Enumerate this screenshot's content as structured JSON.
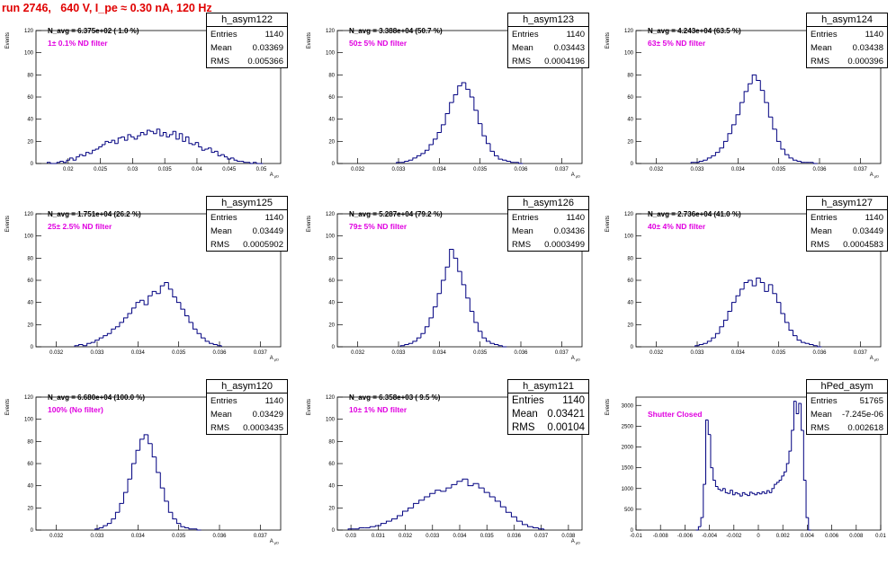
{
  "title": "run 2746,   640 V, I_pe ≈ 0.30 nA, 120 Hz",
  "stat_labels": {
    "entries": "Entries",
    "mean": "Mean",
    "rms": "RMS"
  },
  "colors": {
    "title": "#e00000",
    "annotation": "#e000e0",
    "histogram": "#000080"
  },
  "chart_data": [
    {
      "type": "bar",
      "name": "h_asym122",
      "navg": "N_avg = 6.375e+02 ( 1.0 %)",
      "filter": "1± 0.1% ND filter",
      "entries": "1140",
      "mean": "0.03369",
      "rms": "0.005366",
      "big_stats": false,
      "ylabel": "Events",
      "xlabel": "A_{μD}",
      "xlim": [
        0.015,
        0.053
      ],
      "ylim": [
        0,
        120
      ],
      "yticks": [
        0,
        20,
        40,
        60,
        80,
        100,
        120
      ],
      "xticks": [
        0.02,
        0.025,
        0.03,
        0.035,
        0.04,
        0.045,
        0.05
      ],
      "xtick_labels": [
        "0.02",
        "0.025",
        "0.03",
        "0.035",
        "0.04",
        "0.045",
        "0.05"
      ],
      "x": [
        0.017,
        0.0175,
        0.018,
        0.0185,
        0.019,
        0.0195,
        0.02,
        0.0205,
        0.021,
        0.0215,
        0.022,
        0.0225,
        0.023,
        0.0235,
        0.024,
        0.0245,
        0.025,
        0.0255,
        0.026,
        0.0265,
        0.027,
        0.0275,
        0.028,
        0.0285,
        0.029,
        0.0295,
        0.03,
        0.0305,
        0.031,
        0.0315,
        0.032,
        0.0325,
        0.033,
        0.0335,
        0.034,
        0.0345,
        0.035,
        0.0355,
        0.036,
        0.0365,
        0.037,
        0.0375,
        0.038,
        0.0385,
        0.039,
        0.0395,
        0.04,
        0.0405,
        0.041,
        0.0415,
        0.042,
        0.0425,
        0.043,
        0.0435,
        0.044,
        0.0445,
        0.045,
        0.0455,
        0.046,
        0.0465,
        0.047,
        0.0475,
        0.048,
        0.0485,
        0.049,
        0.0495,
        0.05
      ],
      "values": [
        1,
        0,
        0,
        1,
        2,
        1,
        3,
        5,
        3,
        6,
        8,
        7,
        10,
        9,
        12,
        13,
        15,
        17,
        20,
        19,
        21,
        18,
        23,
        24,
        21,
        26,
        24,
        22,
        25,
        28,
        26,
        30,
        29,
        27,
        31,
        25,
        28,
        24,
        26,
        29,
        22,
        27,
        20,
        24,
        18,
        17,
        19,
        15,
        12,
        13,
        14,
        10,
        11,
        7,
        8,
        6,
        4,
        5,
        3,
        2,
        2,
        1,
        1,
        0,
        1,
        0,
        0
      ]
    },
    {
      "type": "bar",
      "name": "h_asym123",
      "navg": "N_avg = 3.388e+04 (50.7 %)",
      "filter": "50± 5% ND filter",
      "entries": "1140",
      "mean": "0.03443",
      "rms": "0.0004196",
      "big_stats": false,
      "ylabel": "Events",
      "xlabel": "A_{μD}",
      "xlim": [
        0.0315,
        0.0375
      ],
      "ylim": [
        0,
        120
      ],
      "yticks": [
        0,
        20,
        40,
        60,
        80,
        100,
        120
      ],
      "xticks": [
        0.032,
        0.033,
        0.034,
        0.035,
        0.036,
        0.037
      ],
      "xtick_labels": [
        "0.032",
        "0.033",
        "0.034",
        "0.035",
        "0.036",
        "0.037"
      ],
      "x": [
        0.033,
        0.0331,
        0.0332,
        0.0333,
        0.0334,
        0.0335,
        0.0336,
        0.0337,
        0.0338,
        0.0339,
        0.034,
        0.0341,
        0.0342,
        0.0343,
        0.0344,
        0.0345,
        0.0346,
        0.0347,
        0.0348,
        0.0349,
        0.035,
        0.0351,
        0.0352,
        0.0353,
        0.0354,
        0.0355,
        0.0356,
        0.0357,
        0.0358,
        0.0359,
        0.036
      ],
      "values": [
        1,
        1,
        2,
        3,
        5,
        7,
        9,
        12,
        17,
        22,
        28,
        35,
        45,
        55,
        62,
        70,
        73,
        67,
        60,
        48,
        36,
        25,
        18,
        11,
        7,
        4,
        3,
        2,
        1,
        1,
        0
      ]
    },
    {
      "type": "bar",
      "name": "h_asym124",
      "navg": "N_avg = 4.243e+04 (63.5 %)",
      "filter": "63± 5% ND filter",
      "entries": "1140",
      "mean": "0.03438",
      "rms": "0.000396",
      "big_stats": false,
      "ylabel": "Events",
      "xlabel": "A_{μD}",
      "xlim": [
        0.0315,
        0.0375
      ],
      "ylim": [
        0,
        120
      ],
      "yticks": [
        0,
        20,
        40,
        60,
        80,
        100,
        120
      ],
      "xticks": [
        0.032,
        0.033,
        0.034,
        0.035,
        0.036,
        0.037
      ],
      "xtick_labels": [
        "0.032",
        "0.033",
        "0.034",
        "0.035",
        "0.036",
        "0.037"
      ],
      "x": [
        0.0329,
        0.033,
        0.0331,
        0.0332,
        0.0333,
        0.0334,
        0.0335,
        0.0336,
        0.0337,
        0.0338,
        0.0339,
        0.034,
        0.0341,
        0.0342,
        0.0343,
        0.0344,
        0.0345,
        0.0346,
        0.0347,
        0.0348,
        0.0349,
        0.035,
        0.0351,
        0.0352,
        0.0353,
        0.0354,
        0.0355,
        0.0356,
        0.0357,
        0.0358,
        0.0359
      ],
      "values": [
        1,
        1,
        2,
        3,
        5,
        7,
        10,
        14,
        20,
        27,
        35,
        44,
        55,
        65,
        72,
        80,
        75,
        66,
        55,
        42,
        31,
        20,
        13,
        8,
        5,
        3,
        2,
        1,
        1,
        1,
        0
      ]
    },
    {
      "type": "bar",
      "name": "h_asym125",
      "navg": "N_avg = 1.751e+04 (26.2 %)",
      "filter": "25± 2.5% ND filter",
      "entries": "1140",
      "mean": "0.03449",
      "rms": "0.0005902",
      "big_stats": false,
      "ylabel": "Events",
      "xlabel": "A_{μD}",
      "xlim": [
        0.0315,
        0.0375
      ],
      "ylim": [
        0,
        120
      ],
      "yticks": [
        0,
        20,
        40,
        60,
        80,
        100,
        120
      ],
      "xticks": [
        0.032,
        0.033,
        0.034,
        0.035,
        0.036,
        0.037
      ],
      "xtick_labels": [
        "0.032",
        "0.033",
        "0.034",
        "0.035",
        "0.036",
        "0.037"
      ],
      "x": [
        0.0325,
        0.0326,
        0.0327,
        0.0328,
        0.0329,
        0.033,
        0.0331,
        0.0332,
        0.0333,
        0.0334,
        0.0335,
        0.0336,
        0.0337,
        0.0338,
        0.0339,
        0.034,
        0.0341,
        0.0342,
        0.0343,
        0.0344,
        0.0345,
        0.0346,
        0.0347,
        0.0348,
        0.0349,
        0.035,
        0.0351,
        0.0352,
        0.0353,
        0.0354,
        0.0355,
        0.0356,
        0.0357,
        0.0358,
        0.0359,
        0.036
      ],
      "values": [
        1,
        2,
        1,
        3,
        4,
        6,
        8,
        10,
        12,
        16,
        18,
        22,
        26,
        30,
        35,
        40,
        42,
        38,
        46,
        50,
        48,
        55,
        58,
        52,
        45,
        40,
        34,
        28,
        22,
        16,
        12,
        8,
        5,
        3,
        2,
        1
      ]
    },
    {
      "type": "bar",
      "name": "h_asym126",
      "navg": "N_avg = 5.287e+04 (79.2 %)",
      "filter": "79± 5% ND filter",
      "entries": "1140",
      "mean": "0.03436",
      "rms": "0.0003499",
      "big_stats": false,
      "ylabel": "Events",
      "xlabel": "A_{μD}",
      "xlim": [
        0.0315,
        0.0375
      ],
      "ylim": [
        0,
        120
      ],
      "yticks": [
        0,
        20,
        40,
        60,
        80,
        100,
        120
      ],
      "xticks": [
        0.032,
        0.033,
        0.034,
        0.035,
        0.036,
        0.037
      ],
      "xtick_labels": [
        "0.032",
        "0.033",
        "0.034",
        "0.035",
        "0.036",
        "0.037"
      ],
      "x": [
        0.0331,
        0.0332,
        0.0333,
        0.0334,
        0.0335,
        0.0336,
        0.0337,
        0.0338,
        0.0339,
        0.034,
        0.0341,
        0.0342,
        0.0343,
        0.0344,
        0.0345,
        0.0346,
        0.0347,
        0.0348,
        0.0349,
        0.035,
        0.0351,
        0.0352,
        0.0353,
        0.0354,
        0.0355,
        0.0356
      ],
      "values": [
        1,
        2,
        3,
        5,
        8,
        12,
        18,
        26,
        36,
        48,
        60,
        72,
        88,
        80,
        68,
        56,
        44,
        32,
        22,
        14,
        8,
        5,
        3,
        2,
        1,
        0
      ]
    },
    {
      "type": "bar",
      "name": "h_asym127",
      "navg": "N_avg = 2.736e+04 (41.0 %)",
      "filter": "40± 4% ND filter",
      "entries": "1140",
      "mean": "0.03449",
      "rms": "0.0004583",
      "big_stats": false,
      "ylabel": "Events",
      "xlabel": "A_{μD}",
      "xlim": [
        0.0315,
        0.0375
      ],
      "ylim": [
        0,
        120
      ],
      "yticks": [
        0,
        20,
        40,
        60,
        80,
        100,
        120
      ],
      "xticks": [
        0.032,
        0.033,
        0.034,
        0.035,
        0.036,
        0.037
      ],
      "xtick_labels": [
        "0.032",
        "0.033",
        "0.034",
        "0.035",
        "0.036",
        "0.037"
      ],
      "x": [
        0.033,
        0.0331,
        0.0332,
        0.0333,
        0.0334,
        0.0335,
        0.0336,
        0.0337,
        0.0338,
        0.0339,
        0.034,
        0.0341,
        0.0342,
        0.0343,
        0.0344,
        0.0345,
        0.0346,
        0.0347,
        0.0348,
        0.0349,
        0.035,
        0.0351,
        0.0352,
        0.0353,
        0.0354,
        0.0355,
        0.0356,
        0.0357,
        0.0358,
        0.0359,
        0.036
      ],
      "values": [
        1,
        2,
        3,
        5,
        8,
        12,
        18,
        24,
        32,
        40,
        46,
        52,
        58,
        60,
        55,
        62,
        58,
        50,
        56,
        48,
        40,
        30,
        22,
        15,
        10,
        6,
        4,
        3,
        2,
        1,
        0
      ]
    },
    {
      "type": "bar",
      "name": "h_asym120",
      "navg": "N_avg = 6.680e+04 (100.0 %)",
      "filter": "100% (No filter)",
      "entries": "1140",
      "mean": "0.03429",
      "rms": "0.0003435",
      "big_stats": false,
      "ylabel": "Events",
      "xlabel": "A_{μD}",
      "xlim": [
        0.0315,
        0.0375
      ],
      "ylim": [
        0,
        120
      ],
      "yticks": [
        0,
        20,
        40,
        60,
        80,
        100,
        120
      ],
      "xticks": [
        0.032,
        0.033,
        0.034,
        0.035,
        0.036,
        0.037
      ],
      "xtick_labels": [
        "0.032",
        "0.033",
        "0.034",
        "0.035",
        "0.036",
        "0.037"
      ],
      "x": [
        0.033,
        0.0331,
        0.0332,
        0.0333,
        0.0334,
        0.0335,
        0.0336,
        0.0337,
        0.0338,
        0.0339,
        0.034,
        0.0341,
        0.0342,
        0.0343,
        0.0344,
        0.0345,
        0.0346,
        0.0347,
        0.0348,
        0.0349,
        0.035,
        0.0351,
        0.0352,
        0.0353,
        0.0354,
        0.0355
      ],
      "values": [
        1,
        2,
        4,
        6,
        10,
        16,
        24,
        34,
        46,
        60,
        72,
        82,
        86,
        78,
        66,
        52,
        38,
        26,
        16,
        10,
        6,
        3,
        2,
        1,
        1,
        0
      ]
    },
    {
      "type": "bar",
      "name": "h_asym121",
      "navg": "N_avg = 6.358e+03 ( 9.5 %)",
      "filter": "10± 1% ND filter",
      "entries": "1140",
      "mean": "0.03421",
      "rms": "0.00104",
      "big_stats": true,
      "ylabel": "Events",
      "xlabel": "A_{μD}",
      "xlim": [
        0.0295,
        0.0385
      ],
      "ylim": [
        0,
        120
      ],
      "yticks": [
        0,
        20,
        40,
        60,
        80,
        100,
        120
      ],
      "xticks": [
        0.03,
        0.031,
        0.032,
        0.033,
        0.034,
        0.035,
        0.036,
        0.037,
        0.038
      ],
      "xtick_labels": [
        "0.03",
        "0.031",
        "0.032",
        "0.033",
        "0.034",
        "0.035",
        "0.036",
        "0.037",
        "0.038"
      ],
      "x": [
        0.03,
        0.0302,
        0.0304,
        0.0306,
        0.0308,
        0.031,
        0.0312,
        0.0314,
        0.0316,
        0.0318,
        0.032,
        0.0322,
        0.0324,
        0.0326,
        0.0328,
        0.033,
        0.0332,
        0.0334,
        0.0336,
        0.0338,
        0.034,
        0.0342,
        0.0344,
        0.0346,
        0.0348,
        0.035,
        0.0352,
        0.0354,
        0.0356,
        0.0358,
        0.036,
        0.0362,
        0.0364,
        0.0366,
        0.0368,
        0.037
      ],
      "values": [
        1,
        1,
        2,
        2,
        3,
        4,
        6,
        8,
        10,
        13,
        17,
        20,
        24,
        27,
        30,
        33,
        36,
        35,
        38,
        41,
        44,
        46,
        40,
        42,
        38,
        34,
        30,
        26,
        21,
        16,
        12,
        8,
        5,
        3,
        2,
        1
      ]
    },
    {
      "type": "bar",
      "name": "hPed_asym",
      "navg": "",
      "filter": "Shutter Closed",
      "entries": "51765",
      "mean": "-7.245e-06",
      "rms": "0.002618",
      "big_stats": false,
      "ylabel": "Events",
      "xlabel": "",
      "xlim": [
        -0.01,
        0.01
      ],
      "ylim": [
        0,
        3200
      ],
      "yticks": [
        0,
        500,
        1000,
        1500,
        2000,
        2500,
        3000
      ],
      "xticks": [
        -0.01,
        -0.008,
        -0.006,
        -0.004,
        -0.002,
        0,
        0.002,
        0.004,
        0.006,
        0.008,
        0.01
      ],
      "xtick_labels": [
        "-0.01",
        "-0.008",
        "-0.006",
        "-0.004",
        "-0.002",
        "0",
        "0.002",
        "0.004",
        "0.006",
        "0.008",
        "0.01"
      ],
      "x": [
        -0.005,
        -0.0048,
        -0.0046,
        -0.0044,
        -0.0042,
        -0.004,
        -0.0038,
        -0.0036,
        -0.0034,
        -0.0032,
        -0.003,
        -0.0028,
        -0.0026,
        -0.0024,
        -0.0022,
        -0.002,
        -0.0018,
        -0.0016,
        -0.0014,
        -0.0012,
        -0.001,
        -0.0008,
        -0.0006,
        -0.0004,
        -0.0002,
        0.0,
        0.0002,
        0.0004,
        0.0006,
        0.0008,
        0.001,
        0.0012,
        0.0014,
        0.0016,
        0.0018,
        0.002,
        0.0022,
        0.0024,
        0.0026,
        0.0028,
        0.003,
        0.0032,
        0.0034,
        0.0036,
        0.0038,
        0.004,
        0.0042
      ],
      "values": [
        0,
        80,
        300,
        1100,
        2650,
        2300,
        1500,
        1200,
        1050,
        980,
        950,
        1000,
        900,
        880,
        960,
        850,
        900,
        870,
        820,
        900,
        860,
        830,
        910,
        880,
        850,
        900,
        870,
        920,
        880,
        950,
        900,
        1000,
        1100,
        1150,
        1200,
        1300,
        1400,
        1600,
        1900,
        2400,
        3100,
        2800,
        3050,
        2400,
        1200,
        300,
        0
      ]
    }
  ]
}
